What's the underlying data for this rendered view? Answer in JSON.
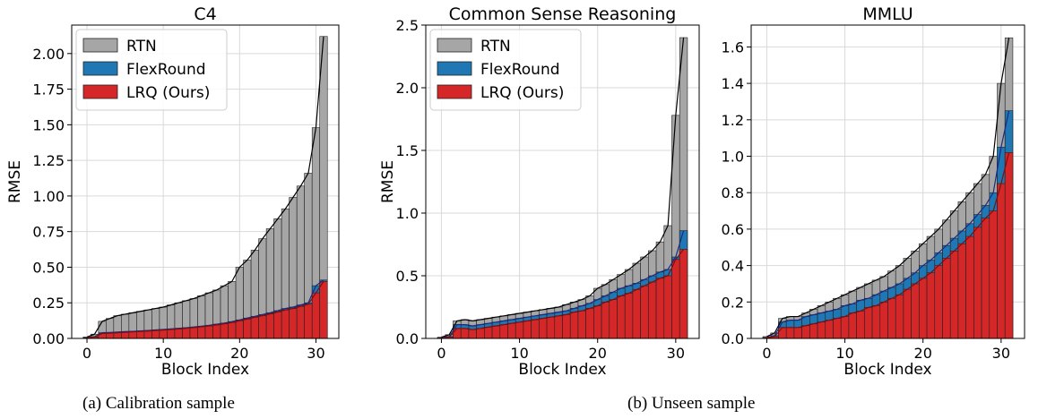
{
  "captions": {
    "a": "(a)  Calibration sample",
    "b": "(b)  Unseen sample"
  },
  "colors": {
    "RTN": "#a6a6a6",
    "FlexRound": "#1f77b4",
    "LRQ (Ours)": "#d62728"
  },
  "chart_data": [
    {
      "type": "bar",
      "title": "C4",
      "xlabel": "Block Index",
      "ylabel": "RMSE",
      "xlim": [
        -2,
        33
      ],
      "ylim": [
        0,
        2.2
      ],
      "xticks": [
        0,
        10,
        20,
        30
      ],
      "yticks": [
        0.0,
        0.25,
        0.5,
        0.75,
        1.0,
        1.25,
        1.5,
        1.75,
        2.0
      ],
      "ytick_labels": [
        "0.00",
        "0.25",
        "0.50",
        "0.75",
        "1.00",
        "1.25",
        "1.50",
        "1.75",
        "2.00"
      ],
      "grid": true,
      "legend_position": "top-left",
      "categories": [
        0,
        1,
        2,
        3,
        4,
        5,
        6,
        7,
        8,
        9,
        10,
        11,
        12,
        13,
        14,
        15,
        16,
        17,
        18,
        19,
        20,
        21,
        22,
        23,
        24,
        25,
        26,
        27,
        28,
        29,
        30,
        31
      ],
      "series": [
        {
          "name": "RTN",
          "values": [
            0.01,
            0.03,
            0.12,
            0.14,
            0.16,
            0.17,
            0.18,
            0.19,
            0.2,
            0.21,
            0.22,
            0.235,
            0.25,
            0.265,
            0.28,
            0.3,
            0.32,
            0.34,
            0.37,
            0.4,
            0.5,
            0.55,
            0.62,
            0.7,
            0.77,
            0.84,
            0.91,
            0.99,
            1.07,
            1.16,
            1.48,
            2.12
          ]
        },
        {
          "name": "FlexRound",
          "values": [
            0.005,
            0.012,
            0.04,
            0.042,
            0.045,
            0.048,
            0.05,
            0.053,
            0.056,
            0.06,
            0.063,
            0.067,
            0.071,
            0.075,
            0.08,
            0.086,
            0.092,
            0.1,
            0.108,
            0.118,
            0.13,
            0.143,
            0.155,
            0.168,
            0.18,
            0.195,
            0.21,
            0.22,
            0.235,
            0.25,
            0.37,
            0.41
          ]
        },
        {
          "name": "LRQ (Ours)",
          "values": [
            0.005,
            0.01,
            0.035,
            0.037,
            0.04,
            0.043,
            0.046,
            0.049,
            0.052,
            0.056,
            0.059,
            0.063,
            0.067,
            0.071,
            0.076,
            0.082,
            0.088,
            0.095,
            0.103,
            0.112,
            0.124,
            0.136,
            0.148,
            0.16,
            0.172,
            0.186,
            0.2,
            0.21,
            0.225,
            0.24,
            0.32,
            0.4
          ]
        }
      ]
    },
    {
      "type": "bar",
      "title": "Common Sense Reasoning",
      "xlabel": "Block Index",
      "ylabel": "RMSE",
      "xlim": [
        -2,
        33
      ],
      "ylim": [
        0,
        2.5
      ],
      "xticks": [
        0,
        10,
        20,
        30
      ],
      "yticks": [
        0.0,
        0.5,
        1.0,
        1.5,
        2.0,
        2.5
      ],
      "ytick_labels": [
        "0.0",
        "0.5",
        "1.0",
        "1.5",
        "2.0",
        "2.5"
      ],
      "grid": true,
      "legend_position": "top-left",
      "categories": [
        0,
        1,
        2,
        3,
        4,
        5,
        6,
        7,
        8,
        9,
        10,
        11,
        12,
        13,
        14,
        15,
        16,
        17,
        18,
        19,
        20,
        21,
        22,
        23,
        24,
        25,
        26,
        27,
        28,
        29,
        30,
        31
      ],
      "series": [
        {
          "name": "RTN",
          "values": [
            0.01,
            0.03,
            0.14,
            0.15,
            0.14,
            0.15,
            0.16,
            0.17,
            0.18,
            0.19,
            0.2,
            0.21,
            0.22,
            0.23,
            0.24,
            0.25,
            0.27,
            0.29,
            0.31,
            0.34,
            0.4,
            0.43,
            0.47,
            0.51,
            0.55,
            0.6,
            0.65,
            0.7,
            0.77,
            0.9,
            1.78,
            2.4
          ]
        },
        {
          "name": "FlexRound",
          "values": [
            0.005,
            0.015,
            0.11,
            0.11,
            0.1,
            0.11,
            0.12,
            0.13,
            0.14,
            0.15,
            0.16,
            0.17,
            0.18,
            0.19,
            0.2,
            0.21,
            0.22,
            0.24,
            0.26,
            0.28,
            0.31,
            0.34,
            0.37,
            0.4,
            0.42,
            0.44,
            0.47,
            0.5,
            0.53,
            0.55,
            0.65,
            0.86
          ]
        },
        {
          "name": "LRQ (Ours)",
          "values": [
            0.005,
            0.01,
            0.08,
            0.08,
            0.07,
            0.08,
            0.09,
            0.1,
            0.11,
            0.12,
            0.13,
            0.14,
            0.15,
            0.16,
            0.17,
            0.18,
            0.19,
            0.21,
            0.22,
            0.24,
            0.26,
            0.29,
            0.31,
            0.34,
            0.36,
            0.39,
            0.42,
            0.45,
            0.48,
            0.5,
            0.63,
            0.71
          ]
        }
      ]
    },
    {
      "type": "bar",
      "title": "MMLU",
      "xlabel": "Block Index",
      "ylabel": "",
      "xlim": [
        -2,
        33
      ],
      "ylim": [
        0,
        1.72
      ],
      "xticks": [
        0,
        10,
        20,
        30
      ],
      "yticks": [
        0.0,
        0.2,
        0.4,
        0.6,
        0.8,
        1.0,
        1.2,
        1.4,
        1.6
      ],
      "ytick_labels": [
        "0.0",
        "0.2",
        "0.4",
        "0.6",
        "0.8",
        "1.0",
        "1.2",
        "1.4",
        "1.6"
      ],
      "grid": true,
      "legend_position": "none",
      "categories": [
        0,
        1,
        2,
        3,
        4,
        5,
        6,
        7,
        8,
        9,
        10,
        11,
        12,
        13,
        14,
        15,
        16,
        17,
        18,
        19,
        20,
        21,
        22,
        23,
        24,
        25,
        26,
        27,
        28,
        29,
        30,
        31
      ],
      "series": [
        {
          "name": "RTN",
          "values": [
            0.01,
            0.03,
            0.11,
            0.12,
            0.12,
            0.14,
            0.16,
            0.18,
            0.2,
            0.22,
            0.24,
            0.26,
            0.28,
            0.3,
            0.32,
            0.34,
            0.37,
            0.4,
            0.44,
            0.48,
            0.52,
            0.56,
            0.6,
            0.65,
            0.7,
            0.75,
            0.8,
            0.85,
            0.9,
            1.0,
            1.4,
            1.65
          ]
        },
        {
          "name": "FlexRound",
          "values": [
            0.005,
            0.015,
            0.09,
            0.1,
            0.1,
            0.12,
            0.13,
            0.14,
            0.15,
            0.16,
            0.18,
            0.19,
            0.21,
            0.22,
            0.24,
            0.26,
            0.28,
            0.3,
            0.33,
            0.36,
            0.4,
            0.43,
            0.47,
            0.51,
            0.55,
            0.59,
            0.63,
            0.68,
            0.73,
            0.8,
            1.05,
            1.25
          ]
        },
        {
          "name": "LRQ (Ours)",
          "values": [
            0.005,
            0.01,
            0.06,
            0.06,
            0.06,
            0.07,
            0.08,
            0.09,
            0.1,
            0.11,
            0.12,
            0.14,
            0.15,
            0.17,
            0.18,
            0.2,
            0.22,
            0.24,
            0.27,
            0.3,
            0.33,
            0.36,
            0.4,
            0.44,
            0.48,
            0.52,
            0.56,
            0.61,
            0.66,
            0.7,
            0.85,
            1.02
          ]
        }
      ]
    }
  ]
}
